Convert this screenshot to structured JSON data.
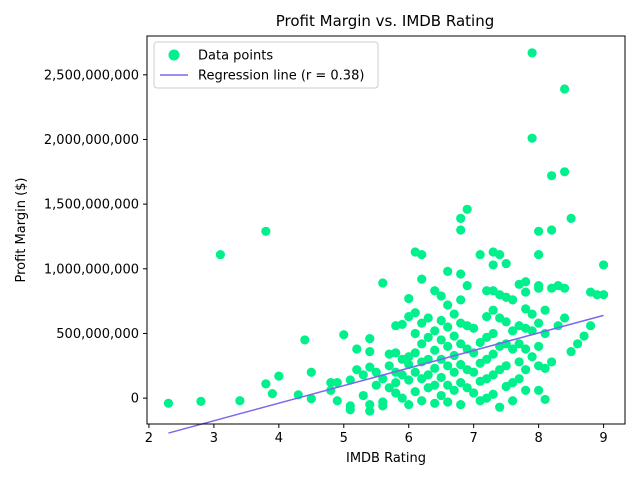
{
  "chart_data": {
    "type": "scatter",
    "title": "Profit Margin vs. IMDB Rating",
    "xlabel": "IMDB Rating",
    "ylabel": "Profit Margin ($)",
    "xlim": [
      1.97,
      9.33
    ],
    "ylim": [
      -200000000,
      2800000000
    ],
    "xticks": [
      2,
      3,
      4,
      5,
      6,
      7,
      8,
      9
    ],
    "yticks": [
      0,
      500000000,
      1000000000,
      1500000000,
      2000000000,
      2500000000
    ],
    "ytick_labels": [
      "0",
      "500,000,000",
      "1,000,000,000",
      "1,500,000,000",
      "2,000,000,000",
      "2,500,000,000"
    ],
    "grid": false,
    "legend": {
      "placement": "top-left",
      "entries": [
        "Data points",
        "Regression line (r = 0.38)"
      ]
    },
    "colors": {
      "points": "#00f08c",
      "line": "#7b68ee"
    },
    "series": [
      {
        "name": "Data points",
        "type": "scatter",
        "points": [
          [
            2.3,
            -40000000
          ],
          [
            2.8,
            -25000000
          ],
          [
            3.1,
            1110000000
          ],
          [
            3.4,
            -20000000
          ],
          [
            3.8,
            1290000000
          ],
          [
            3.8,
            110000000
          ],
          [
            3.9,
            35000000
          ],
          [
            4.0,
            170000000
          ],
          [
            4.3,
            25000000
          ],
          [
            4.4,
            450000000
          ],
          [
            4.5,
            200000000
          ],
          [
            4.5,
            -5000000
          ],
          [
            4.8,
            120000000
          ],
          [
            4.8,
            60000000
          ],
          [
            4.9,
            120000000
          ],
          [
            4.9,
            -20000000
          ],
          [
            5.0,
            490000000
          ],
          [
            5.1,
            140000000
          ],
          [
            5.1,
            -60000000
          ],
          [
            5.1,
            -90000000
          ],
          [
            5.2,
            380000000
          ],
          [
            5.2,
            220000000
          ],
          [
            5.3,
            180000000
          ],
          [
            5.3,
            20000000
          ],
          [
            5.4,
            460000000
          ],
          [
            5.4,
            360000000
          ],
          [
            5.4,
            240000000
          ],
          [
            5.4,
            -50000000
          ],
          [
            5.4,
            -100000000
          ],
          [
            5.5,
            200000000
          ],
          [
            5.5,
            100000000
          ],
          [
            5.6,
            890000000
          ],
          [
            5.6,
            150000000
          ],
          [
            5.6,
            -30000000
          ],
          [
            5.6,
            -60000000
          ],
          [
            5.7,
            340000000
          ],
          [
            5.7,
            250000000
          ],
          [
            5.7,
            80000000
          ],
          [
            5.8,
            560000000
          ],
          [
            5.8,
            350000000
          ],
          [
            5.8,
            200000000
          ],
          [
            5.8,
            120000000
          ],
          [
            5.8,
            40000000
          ],
          [
            5.9,
            570000000
          ],
          [
            5.9,
            300000000
          ],
          [
            5.9,
            180000000
          ],
          [
            5.9,
            0
          ],
          [
            6.0,
            770000000
          ],
          [
            6.0,
            630000000
          ],
          [
            6.0,
            320000000
          ],
          [
            6.0,
            260000000
          ],
          [
            6.0,
            140000000
          ],
          [
            6.0,
            -50000000
          ],
          [
            6.1,
            1130000000
          ],
          [
            6.1,
            660000000
          ],
          [
            6.1,
            500000000
          ],
          [
            6.1,
            350000000
          ],
          [
            6.1,
            200000000
          ],
          [
            6.1,
            50000000
          ],
          [
            6.2,
            1110000000
          ],
          [
            6.2,
            920000000
          ],
          [
            6.2,
            580000000
          ],
          [
            6.2,
            420000000
          ],
          [
            6.2,
            280000000
          ],
          [
            6.2,
            150000000
          ],
          [
            6.2,
            -20000000
          ],
          [
            6.3,
            620000000
          ],
          [
            6.3,
            470000000
          ],
          [
            6.3,
            300000000
          ],
          [
            6.3,
            180000000
          ],
          [
            6.3,
            80000000
          ],
          [
            6.4,
            830000000
          ],
          [
            6.4,
            520000000
          ],
          [
            6.4,
            370000000
          ],
          [
            6.4,
            230000000
          ],
          [
            6.4,
            100000000
          ],
          [
            6.4,
            -40000000
          ],
          [
            6.5,
            790000000
          ],
          [
            6.5,
            600000000
          ],
          [
            6.5,
            450000000
          ],
          [
            6.5,
            300000000
          ],
          [
            6.5,
            160000000
          ],
          [
            6.5,
            20000000
          ],
          [
            6.6,
            980000000
          ],
          [
            6.6,
            720000000
          ],
          [
            6.6,
            550000000
          ],
          [
            6.6,
            400000000
          ],
          [
            6.6,
            250000000
          ],
          [
            6.6,
            100000000
          ],
          [
            6.6,
            -30000000
          ],
          [
            6.7,
            650000000
          ],
          [
            6.7,
            480000000
          ],
          [
            6.7,
            330000000
          ],
          [
            6.7,
            200000000
          ],
          [
            6.7,
            60000000
          ],
          [
            6.8,
            1390000000
          ],
          [
            6.8,
            1300000000
          ],
          [
            6.8,
            960000000
          ],
          [
            6.8,
            760000000
          ],
          [
            6.8,
            580000000
          ],
          [
            6.8,
            420000000
          ],
          [
            6.8,
            260000000
          ],
          [
            6.8,
            120000000
          ],
          [
            6.8,
            -50000000
          ],
          [
            6.9,
            1460000000
          ],
          [
            6.9,
            870000000
          ],
          [
            6.9,
            560000000
          ],
          [
            6.9,
            380000000
          ],
          [
            6.9,
            220000000
          ],
          [
            6.9,
            80000000
          ],
          [
            7.0,
            540000000
          ],
          [
            7.0,
            350000000
          ],
          [
            7.0,
            200000000
          ],
          [
            7.0,
            40000000
          ],
          [
            7.1,
            1110000000
          ],
          [
            7.1,
            430000000
          ],
          [
            7.1,
            270000000
          ],
          [
            7.1,
            130000000
          ],
          [
            7.1,
            -20000000
          ],
          [
            7.2,
            830000000
          ],
          [
            7.2,
            630000000
          ],
          [
            7.2,
            470000000
          ],
          [
            7.2,
            300000000
          ],
          [
            7.2,
            150000000
          ],
          [
            7.2,
            0
          ],
          [
            7.3,
            1130000000
          ],
          [
            7.3,
            1030000000
          ],
          [
            7.3,
            830000000
          ],
          [
            7.3,
            680000000
          ],
          [
            7.3,
            500000000
          ],
          [
            7.3,
            340000000
          ],
          [
            7.3,
            180000000
          ],
          [
            7.3,
            30000000
          ],
          [
            7.4,
            1110000000
          ],
          [
            7.4,
            800000000
          ],
          [
            7.4,
            620000000
          ],
          [
            7.4,
            400000000
          ],
          [
            7.4,
            220000000
          ],
          [
            7.4,
            -70000000
          ],
          [
            7.5,
            1040000000
          ],
          [
            7.5,
            780000000
          ],
          [
            7.5,
            590000000
          ],
          [
            7.5,
            420000000
          ],
          [
            7.5,
            250000000
          ],
          [
            7.5,
            90000000
          ],
          [
            7.6,
            760000000
          ],
          [
            7.6,
            520000000
          ],
          [
            7.6,
            380000000
          ],
          [
            7.6,
            120000000
          ],
          [
            7.6,
            -20000000
          ],
          [
            7.7,
            880000000
          ],
          [
            7.7,
            560000000
          ],
          [
            7.7,
            420000000
          ],
          [
            7.7,
            280000000
          ],
          [
            7.7,
            150000000
          ],
          [
            7.8,
            900000000
          ],
          [
            7.8,
            820000000
          ],
          [
            7.8,
            690000000
          ],
          [
            7.8,
            540000000
          ],
          [
            7.8,
            380000000
          ],
          [
            7.8,
            220000000
          ],
          [
            7.8,
            60000000
          ],
          [
            7.9,
            2670000000
          ],
          [
            7.9,
            2010000000
          ],
          [
            7.9,
            650000000
          ],
          [
            7.9,
            520000000
          ],
          [
            7.9,
            320000000
          ],
          [
            8.0,
            1290000000
          ],
          [
            8.0,
            1110000000
          ],
          [
            8.0,
            870000000
          ],
          [
            8.0,
            850000000
          ],
          [
            8.0,
            580000000
          ],
          [
            8.0,
            400000000
          ],
          [
            8.0,
            250000000
          ],
          [
            8.0,
            60000000
          ],
          [
            8.1,
            680000000
          ],
          [
            8.1,
            500000000
          ],
          [
            8.1,
            230000000
          ],
          [
            8.1,
            -10000000
          ],
          [
            8.2,
            1720000000
          ],
          [
            8.2,
            1300000000
          ],
          [
            8.2,
            850000000
          ],
          [
            8.2,
            280000000
          ],
          [
            8.3,
            870000000
          ],
          [
            8.3,
            560000000
          ],
          [
            8.4,
            2390000000
          ],
          [
            8.4,
            1750000000
          ],
          [
            8.4,
            850000000
          ],
          [
            8.4,
            620000000
          ],
          [
            8.5,
            1390000000
          ],
          [
            8.5,
            360000000
          ],
          [
            8.6,
            420000000
          ],
          [
            8.7,
            480000000
          ],
          [
            8.8,
            820000000
          ],
          [
            8.8,
            560000000
          ],
          [
            8.9,
            800000000
          ],
          [
            9.0,
            1030000000
          ],
          [
            9.0,
            800000000
          ]
        ]
      },
      {
        "name": "Regression line (r = 0.38)",
        "type": "line",
        "points": [
          [
            2.3,
            -270000000
          ],
          [
            9.0,
            640000000
          ]
        ]
      }
    ]
  }
}
